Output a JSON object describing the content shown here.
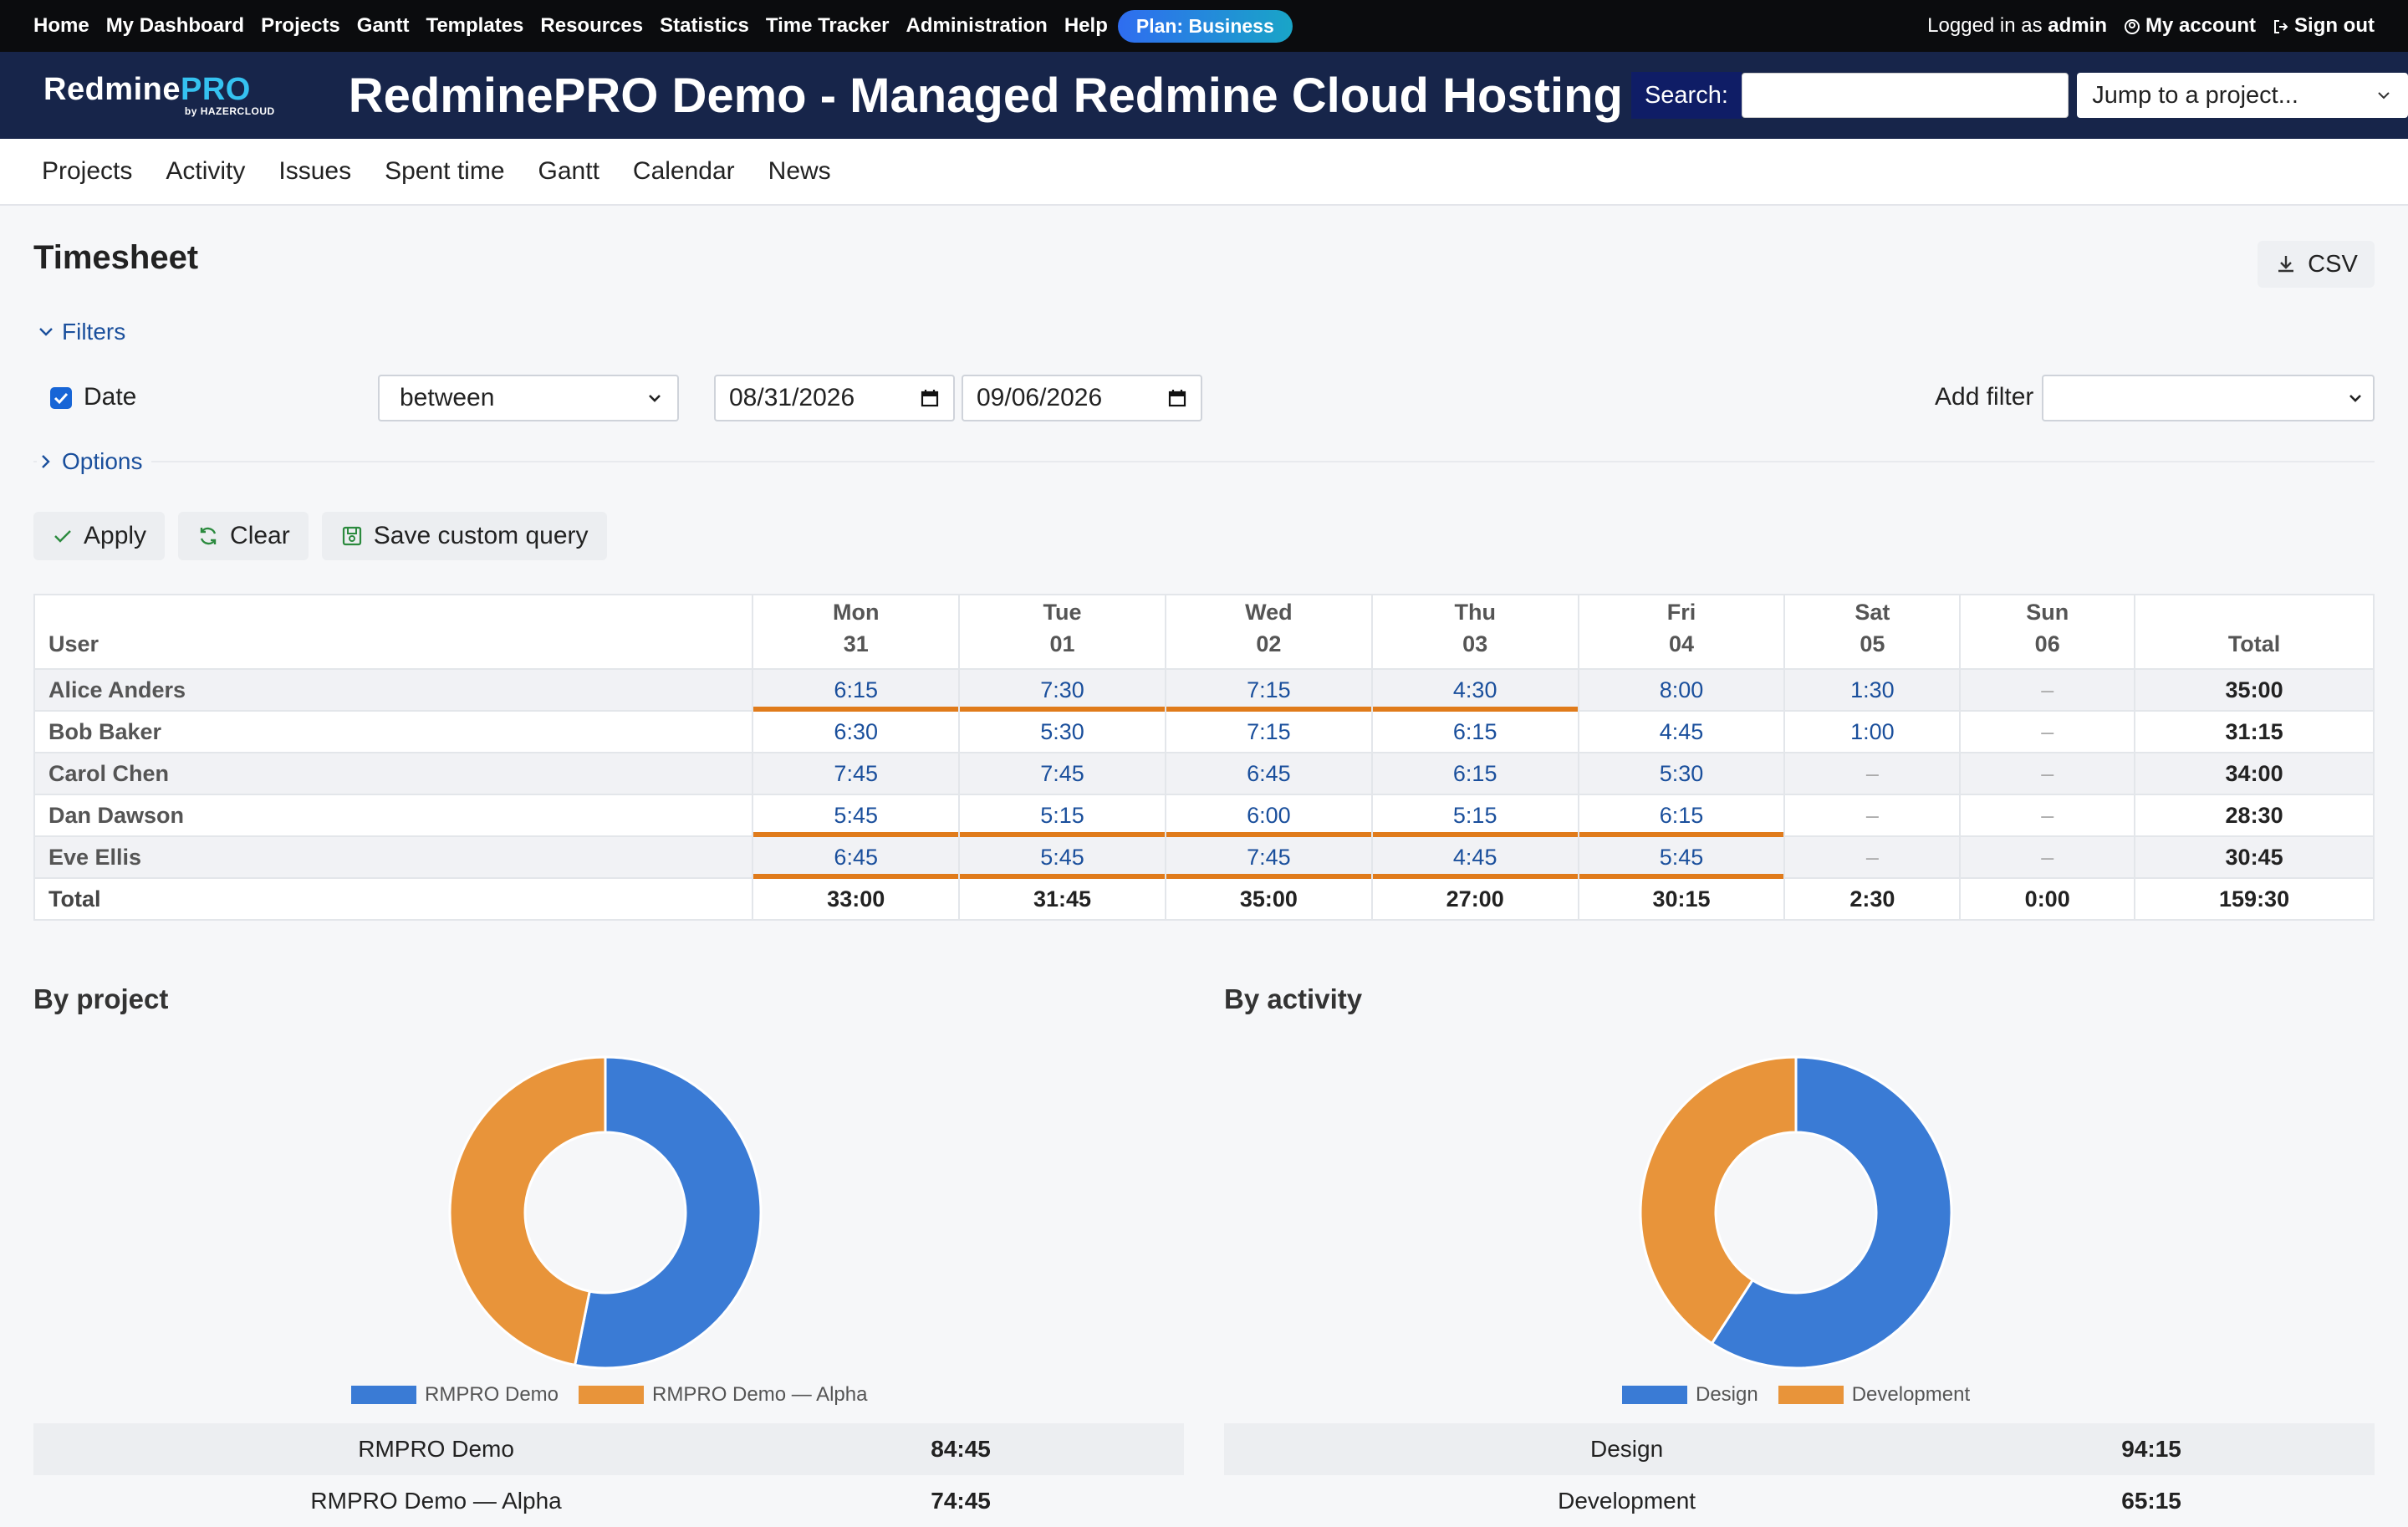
{
  "topbar": {
    "menu": [
      "Home",
      "My Dashboard",
      "Projects",
      "Gantt",
      "Templates",
      "Resources",
      "Statistics",
      "Time Tracker",
      "Administration",
      "Help"
    ],
    "plan_badge": "Plan: Business",
    "logged_in_prefix": "Logged in as",
    "logged_in_user": "admin",
    "my_account": "My account",
    "sign_out": "Sign out"
  },
  "header": {
    "logo_main": "Redmine",
    "logo_pro": "PRO",
    "logo_sub": "by HAZERCLOUD",
    "title": "RedminePRO Demo - Managed Redmine Cloud Hosting",
    "search_label": "Search:",
    "search_value": "",
    "jump_placeholder": "Jump to a project..."
  },
  "main_nav": [
    "Projects",
    "Activity",
    "Issues",
    "Spent time",
    "Gantt",
    "Calendar",
    "News"
  ],
  "page": {
    "title": "Timesheet",
    "csv_label": "CSV",
    "filters_label": "Filters",
    "options_label": "Options",
    "filter": {
      "date_label": "Date",
      "operator": "between",
      "from": "08/31/2026",
      "to": "09/06/2026",
      "add_filter_label": "Add filter",
      "add_filter_value": ""
    },
    "buttons": {
      "apply": "Apply",
      "clear": "Clear",
      "save_query": "Save custom query"
    }
  },
  "timesheet": {
    "user_header": "User",
    "total_header": "Total",
    "days": [
      {
        "dow": "Mon",
        "day": "31"
      },
      {
        "dow": "Tue",
        "day": "01"
      },
      {
        "dow": "Wed",
        "day": "02"
      },
      {
        "dow": "Thu",
        "day": "03"
      },
      {
        "dow": "Fri",
        "day": "04"
      },
      {
        "dow": "Sat",
        "day": "05"
      },
      {
        "dow": "Sun",
        "day": "06"
      }
    ],
    "rows": [
      {
        "user": "Alice Anders",
        "cells": [
          "6:15",
          "7:30",
          "7:15",
          "4:30",
          "8:00",
          "1:30",
          "–"
        ],
        "over": [
          true,
          true,
          true,
          true,
          false,
          false,
          false
        ],
        "total": "35:00"
      },
      {
        "user": "Bob Baker",
        "cells": [
          "6:30",
          "5:30",
          "7:15",
          "6:15",
          "4:45",
          "1:00",
          "–"
        ],
        "over": [
          false,
          false,
          false,
          false,
          false,
          false,
          false
        ],
        "total": "31:15"
      },
      {
        "user": "Carol Chen",
        "cells": [
          "7:45",
          "7:45",
          "6:45",
          "6:15",
          "5:30",
          "–",
          "–"
        ],
        "over": [
          false,
          false,
          false,
          false,
          false,
          false,
          false
        ],
        "total": "34:00"
      },
      {
        "user": "Dan Dawson",
        "cells": [
          "5:45",
          "5:15",
          "6:00",
          "5:15",
          "6:15",
          "–",
          "–"
        ],
        "over": [
          true,
          true,
          true,
          true,
          true,
          false,
          false
        ],
        "total": "28:30"
      },
      {
        "user": "Eve Ellis",
        "cells": [
          "6:45",
          "5:45",
          "7:45",
          "4:45",
          "5:45",
          "–",
          "–"
        ],
        "over": [
          true,
          true,
          true,
          true,
          true,
          false,
          false
        ],
        "total": "30:45"
      }
    ],
    "totals": {
      "label": "Total",
      "cells": [
        "33:00",
        "31:45",
        "35:00",
        "27:00",
        "30:15",
        "2:30",
        "0:00"
      ],
      "total": "159:30"
    }
  },
  "by_project": {
    "title": "By project",
    "items": [
      {
        "name": "RMPRO Demo",
        "value": "84:45",
        "hours": 84.75,
        "color": "#3a7bd5"
      },
      {
        "name": "RMPRO Demo — Alpha",
        "value": "74:45",
        "hours": 74.75,
        "color": "#e8943a"
      }
    ]
  },
  "by_activity": {
    "title": "By activity",
    "items": [
      {
        "name": "Design",
        "value": "94:15",
        "hours": 94.25,
        "color": "#3a7bd5"
      },
      {
        "name": "Development",
        "value": "65:15",
        "hours": 65.25,
        "color": "#e8943a"
      }
    ]
  }
}
